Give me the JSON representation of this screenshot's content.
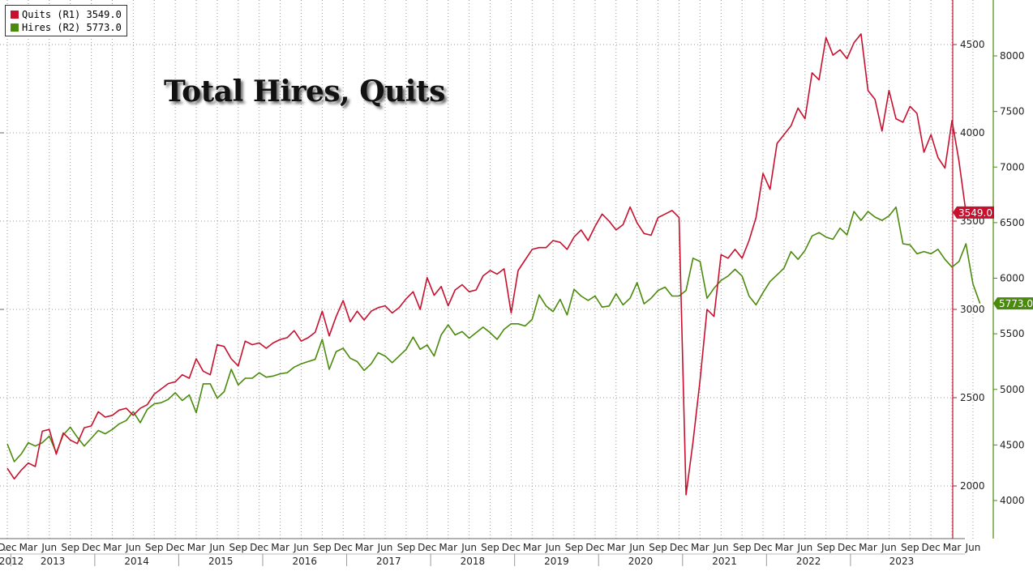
{
  "chart_data": {
    "type": "line",
    "title": "Total Hires, Quits",
    "colors": {
      "quits": "#c8102e",
      "hires": "#4a8a0c",
      "grid": "#9a9a9a"
    },
    "legend": [
      {
        "label": "Quits (R1) 3549.0",
        "color": "#c8102e"
      },
      {
        "label": "Hires (R2) 5773.0",
        "color": "#4a8a0c"
      }
    ],
    "start": "2012-12",
    "series": [
      {
        "name": "Quits",
        "axis": "R1",
        "last_label": "3549.0",
        "values": [
          2100,
          2040,
          2090,
          2130,
          2110,
          2310,
          2320,
          2180,
          2300,
          2260,
          2240,
          2330,
          2340,
          2420,
          2390,
          2400,
          2430,
          2440,
          2400,
          2440,
          2460,
          2520,
          2550,
          2580,
          2590,
          2630,
          2610,
          2720,
          2650,
          2630,
          2800,
          2790,
          2720,
          2680,
          2820,
          2800,
          2810,
          2780,
          2810,
          2830,
          2840,
          2880,
          2820,
          2840,
          2870,
          2990,
          2850,
          2960,
          3050,
          2930,
          2990,
          2940,
          2990,
          3010,
          3020,
          2980,
          3010,
          3060,
          3100,
          3000,
          3180,
          3080,
          3130,
          3020,
          3110,
          3140,
          3100,
          3110,
          3190,
          3220,
          3200,
          3230,
          2980,
          3220,
          3280,
          3340,
          3350,
          3350,
          3390,
          3380,
          3340,
          3410,
          3450,
          3390,
          3470,
          3540,
          3500,
          3450,
          3480,
          3580,
          3490,
          3430,
          3420,
          3520,
          3540,
          3560,
          3520,
          1950,
          2250,
          2600,
          3000,
          2960,
          3310,
          3290,
          3340,
          3290,
          3390,
          3520,
          3770,
          3680,
          3940,
          3990,
          4040,
          4140,
          4080,
          4340,
          4300,
          4540,
          4440,
          4470,
          4420,
          4510,
          4560,
          4240,
          4190,
          4010,
          4240,
          4080,
          4060,
          4150,
          4110,
          3890,
          3990,
          3860,
          3800,
          4070,
          3840,
          3549
        ]
      },
      {
        "name": "Hires",
        "axis": "R2",
        "last_label": "5773.0",
        "values": [
          4510,
          4350,
          4420,
          4520,
          4490,
          4520,
          4580,
          4430,
          4590,
          4660,
          4570,
          4490,
          4560,
          4630,
          4600,
          4640,
          4690,
          4720,
          4800,
          4700,
          4820,
          4870,
          4880,
          4910,
          4970,
          4900,
          4950,
          4790,
          5050,
          5050,
          4920,
          4980,
          5180,
          5040,
          5100,
          5100,
          5150,
          5110,
          5120,
          5140,
          5150,
          5200,
          5230,
          5250,
          5270,
          5450,
          5180,
          5340,
          5370,
          5280,
          5250,
          5170,
          5230,
          5330,
          5300,
          5240,
          5300,
          5360,
          5470,
          5360,
          5400,
          5300,
          5490,
          5580,
          5490,
          5520,
          5460,
          5510,
          5560,
          5510,
          5450,
          5540,
          5590,
          5590,
          5570,
          5630,
          5850,
          5750,
          5700,
          5810,
          5670,
          5900,
          5840,
          5800,
          5840,
          5740,
          5750,
          5860,
          5760,
          5820,
          5960,
          5770,
          5820,
          5890,
          5920,
          5840,
          5840,
          5890,
          6180,
          6150,
          5820,
          5910,
          5980,
          6020,
          6080,
          6020,
          5840,
          5760,
          5870,
          5970,
          6030,
          6090,
          6240,
          6170,
          6250,
          6380,
          6410,
          6370,
          6350,
          6450,
          6390,
          6600,
          6520,
          6600,
          6550,
          6520,
          6560,
          6640,
          6310,
          6300,
          6220,
          6240,
          6220,
          6260,
          6170,
          6100,
          6150,
          6310,
          5950,
          5773
        ]
      }
    ],
    "axes": {
      "left_ticks": [
        "3000",
        "4000"
      ],
      "right_r1": {
        "min": 1770,
        "max": 4700,
        "ticks": [
          2000,
          2500,
          3000,
          3500,
          4000,
          4500
        ]
      },
      "right_r2": {
        "min": 3780,
        "max": 8330,
        "ticks": [
          4000,
          4500,
          5000,
          5500,
          6000,
          6500,
          7000,
          7500,
          8000
        ]
      },
      "x_month_ticks": [
        {
          "label": "...",
          "i": 0
        },
        {
          "label": "Dec",
          "i": 0
        },
        {
          "label": "Mar",
          "i": 3
        },
        {
          "label": "Jun",
          "i": 6
        },
        {
          "label": "Sep",
          "i": 9
        },
        {
          "label": "Dec",
          "i": 12
        },
        {
          "label": "Mar",
          "i": 15
        },
        {
          "label": "Jun",
          "i": 18
        },
        {
          "label": "Sep",
          "i": 21
        },
        {
          "label": "Dec",
          "i": 24
        },
        {
          "label": "Mar",
          "i": 27
        },
        {
          "label": "Jun",
          "i": 30
        },
        {
          "label": "Sep",
          "i": 33
        },
        {
          "label": "Dec",
          "i": 36
        },
        {
          "label": "Mar",
          "i": 39
        },
        {
          "label": "Jun",
          "i": 42
        },
        {
          "label": "Sep",
          "i": 45
        },
        {
          "label": "Dec",
          "i": 48
        },
        {
          "label": "Mar",
          "i": 51
        },
        {
          "label": "Jun",
          "i": 54
        },
        {
          "label": "Sep",
          "i": 57
        },
        {
          "label": "Dec",
          "i": 60
        },
        {
          "label": "Mar",
          "i": 63
        },
        {
          "label": "Jun",
          "i": 66
        },
        {
          "label": "Sep",
          "i": 69
        },
        {
          "label": "Dec",
          "i": 72
        },
        {
          "label": "Mar",
          "i": 75
        },
        {
          "label": "Jun",
          "i": 78
        },
        {
          "label": "Sep",
          "i": 81
        },
        {
          "label": "Dec",
          "i": 84
        },
        {
          "label": "Mar",
          "i": 87
        },
        {
          "label": "Jun",
          "i": 90
        },
        {
          "label": "Sep",
          "i": 93
        },
        {
          "label": "Dec",
          "i": 96
        },
        {
          "label": "Mar",
          "i": 99
        },
        {
          "label": "Jun",
          "i": 102
        },
        {
          "label": "Sep",
          "i": 105
        },
        {
          "label": "Dec",
          "i": 108
        },
        {
          "label": "Mar",
          "i": 111
        },
        {
          "label": "Jun",
          "i": 114
        },
        {
          "label": "Sep",
          "i": 117
        },
        {
          "label": "Dec",
          "i": 120
        },
        {
          "label": "Mar",
          "i": 123
        },
        {
          "label": "Jun",
          "i": 126
        },
        {
          "label": "Sep",
          "i": 129
        },
        {
          "label": "Dec",
          "i": 132
        },
        {
          "label": "Mar",
          "i": 135
        },
        {
          "label": "Jun",
          "i": 138
        }
      ],
      "x_year_labels": [
        "2012",
        "2013",
        "2014",
        "2015",
        "2016",
        "2017",
        "2018",
        "2019",
        "2020",
        "2021",
        "2022",
        "2023"
      ]
    }
  }
}
